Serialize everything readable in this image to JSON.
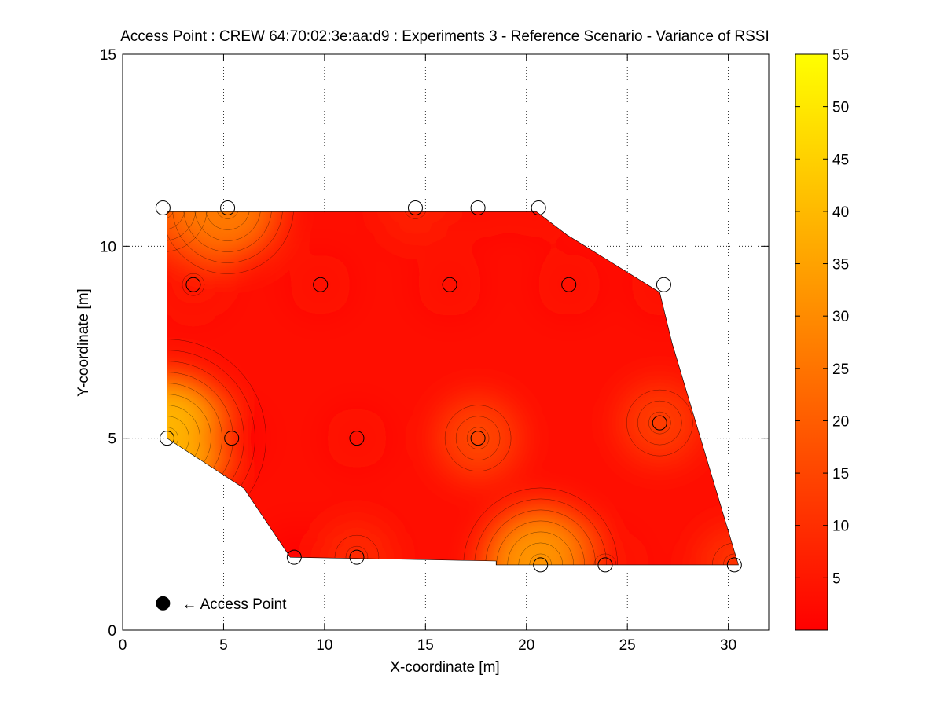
{
  "chart_data": {
    "type": "heatmap",
    "title": "Access Point : CREW 64:70:02:3e:aa:d9 : Experiments 3 - Reference Scenario - Variance of RSSI",
    "xlabel": "X-coordinate [m]",
    "ylabel": "Y-coordinate [m]",
    "xlim": [
      0,
      32
    ],
    "ylim": [
      0,
      15
    ],
    "xticks": [
      0,
      5,
      10,
      15,
      20,
      25,
      30
    ],
    "yticks": [
      0,
      5,
      10,
      15
    ],
    "grid": true,
    "colorbar": {
      "min": 0,
      "max": 55,
      "ticks": [
        5,
        10,
        15,
        20,
        25,
        30,
        35,
        40,
        45,
        50,
        55
      ],
      "colormap": "autumn",
      "color_low": "#ff0000",
      "color_high": "#ffff00"
    },
    "measurement_points": [
      {
        "x": 2.0,
        "y": 11.0,
        "variance": 20
      },
      {
        "x": 5.2,
        "y": 11.0,
        "variance": 30
      },
      {
        "x": 14.5,
        "y": 11.0,
        "variance": 8
      },
      {
        "x": 17.6,
        "y": 11.0,
        "variance": 3
      },
      {
        "x": 20.6,
        "y": 11.0,
        "variance": 2
      },
      {
        "x": 3.5,
        "y": 9.0,
        "variance": 5
      },
      {
        "x": 9.8,
        "y": 9.0,
        "variance": 2
      },
      {
        "x": 16.2,
        "y": 9.0,
        "variance": 4
      },
      {
        "x": 22.1,
        "y": 9.0,
        "variance": 3
      },
      {
        "x": 26.8,
        "y": 9.0,
        "variance": 4
      },
      {
        "x": 2.2,
        "y": 5.0,
        "variance": 45
      },
      {
        "x": 5.4,
        "y": 5.0,
        "variance": 1
      },
      {
        "x": 11.6,
        "y": 5.0,
        "variance": 2
      },
      {
        "x": 17.6,
        "y": 5.0,
        "variance": 17
      },
      {
        "x": 26.6,
        "y": 5.4,
        "variance": 15
      },
      {
        "x": 8.5,
        "y": 1.9,
        "variance": 1
      },
      {
        "x": 11.6,
        "y": 1.9,
        "variance": 10
      },
      {
        "x": 20.7,
        "y": 1.7,
        "variance": 37
      },
      {
        "x": 23.9,
        "y": 1.7,
        "variance": 5
      },
      {
        "x": 30.3,
        "y": 1.7,
        "variance": 12
      }
    ],
    "access_point": {
      "x": 2.0,
      "y": 0.7,
      "label": "← Access Point"
    },
    "region_boundary": [
      [
        2.2,
        10.9
      ],
      [
        20.5,
        10.9
      ],
      [
        22.0,
        10.3
      ],
      [
        26.6,
        8.8
      ],
      [
        27.2,
        7.5
      ],
      [
        30.5,
        1.7
      ],
      [
        18.5,
        1.7
      ],
      [
        18.5,
        1.8
      ],
      [
        8.3,
        1.9
      ],
      [
        6.0,
        3.7
      ],
      [
        2.2,
        5.0
      ]
    ]
  }
}
